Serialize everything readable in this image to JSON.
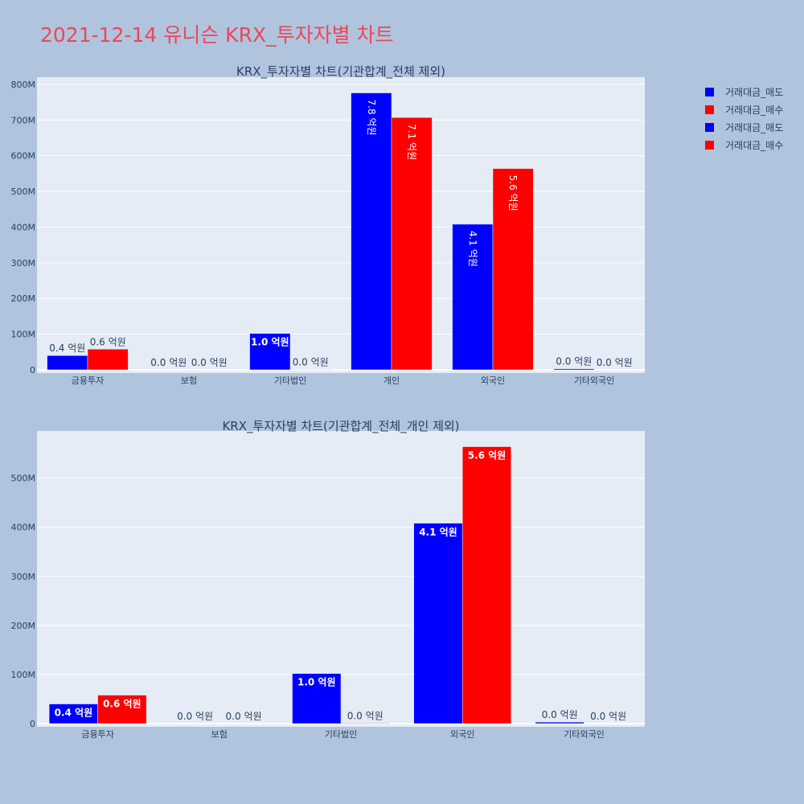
{
  "page": {
    "title": "2021-12-14 유니슨 KRX_투자자별 차트"
  },
  "legend": {
    "entries": [
      {
        "label": "거래대금_매도",
        "color": "#0000ff"
      },
      {
        "label": "거래대금_매수",
        "color": "#ff0000"
      },
      {
        "label": "거래대금_매도",
        "color": "#0000ff"
      },
      {
        "label": "거래대금_매수",
        "color": "#ff0000"
      }
    ]
  },
  "chart_data": [
    {
      "type": "bar",
      "title": "KRX_투자자별 차트(기관합계_전체 제외)",
      "categories": [
        "금융투자",
        "보험",
        "기타법인",
        "개인",
        "외국인",
        "기타외국인"
      ],
      "ylim": [
        0,
        820
      ],
      "yticks": [
        0,
        100,
        200,
        300,
        400,
        500,
        600,
        700,
        800
      ],
      "ytick_labels": [
        "0",
        "100M",
        "200M",
        "300M",
        "400M",
        "500M",
        "600M",
        "700M",
        "800M"
      ],
      "grid": true,
      "legend_position": "top-right",
      "series": [
        {
          "name": "거래대금_매도",
          "color": "#0000ff",
          "values": [
            40,
            0,
            102,
            776,
            408,
            3
          ],
          "labels": [
            "0.4 억원",
            "0.0 억원",
            "1.0 억원",
            "7.8 억원",
            "4.1 억원",
            "0.0 억원"
          ]
        },
        {
          "name": "거래대금_매수",
          "color": "#ff0000",
          "values": [
            58,
            0,
            1,
            707,
            564,
            0
          ],
          "labels": [
            "0.6 억원",
            "0.0 억원",
            "0.0 억원",
            "7.1 억원",
            "5.6 억원",
            "0.0 억원"
          ]
        }
      ]
    },
    {
      "type": "bar",
      "title": "KRX_투자자별 차트(기관합계_전체_개인 제외)",
      "categories": [
        "금융투자",
        "보험",
        "기타법인",
        "외국인",
        "기타외국인"
      ],
      "ylim": [
        0,
        596
      ],
      "yticks": [
        0,
        100,
        200,
        300,
        400,
        500
      ],
      "ytick_labels": [
        "0",
        "100M",
        "200M",
        "300M",
        "400M",
        "500M"
      ],
      "grid": true,
      "legend_position": "top-right",
      "series": [
        {
          "name": "거래대금_매도",
          "color": "#0000ff",
          "values": [
            40,
            0,
            102,
            408,
            3
          ],
          "labels": [
            "0.4 억원",
            "0.0 억원",
            "1.0 억원",
            "4.1 억원",
            "0.0 억원"
          ]
        },
        {
          "name": "거래대금_매수",
          "color": "#ff0000",
          "values": [
            58,
            0,
            1,
            564,
            0
          ],
          "labels": [
            "0.6 억원",
            "0.0 억원",
            "0.0 억원",
            "5.6 억원",
            "0.0 억원"
          ]
        }
      ]
    }
  ]
}
